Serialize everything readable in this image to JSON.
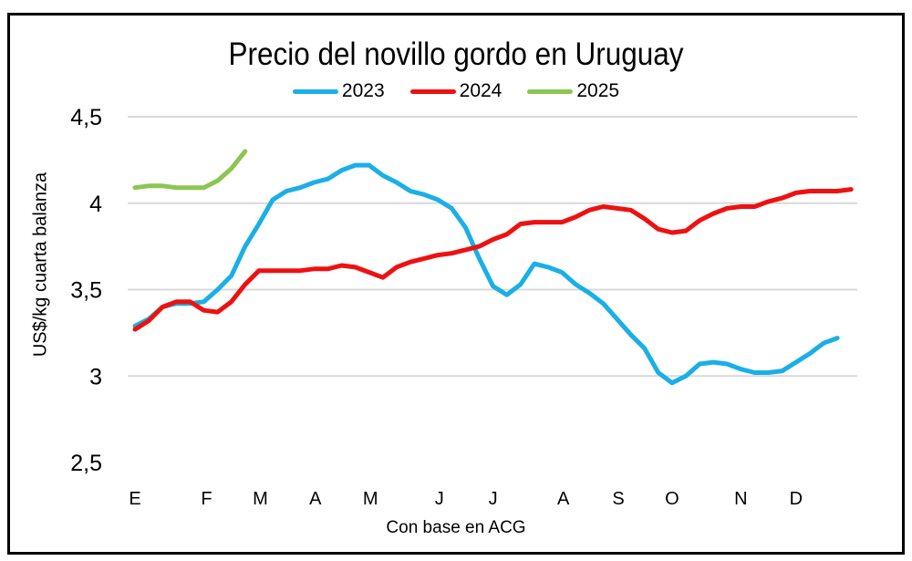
{
  "chart_data": {
    "type": "line",
    "title": "Precio del novillo gordo en Uruguay",
    "ylabel": "US$/kg cuarta balanza",
    "xlabel": "Con base en ACG",
    "ylim": [
      2.5,
      4.5
    ],
    "y_ticks": [
      "2,5",
      "3",
      "3,5",
      "4",
      "4,5"
    ],
    "y_tick_values": [
      2.5,
      3,
      3.5,
      4,
      4.5
    ],
    "x_ticks": [
      {
        "label": "E",
        "week": 0
      },
      {
        "label": "F",
        "week": 5.2
      },
      {
        "label": "M",
        "week": 9.1
      },
      {
        "label": "A",
        "week": 13.1
      },
      {
        "label": "M",
        "week": 17.1
      },
      {
        "label": "J",
        "week": 22.1
      },
      {
        "label": "J",
        "week": 26
      },
      {
        "label": "A",
        "week": 31.1
      },
      {
        "label": "S",
        "week": 35.1
      },
      {
        "label": "O",
        "week": 39
      },
      {
        "label": "N",
        "week": 44
      },
      {
        "label": "D",
        "week": 48
      }
    ],
    "grid": true,
    "legend_position": "top",
    "series": [
      {
        "name": "2023",
        "color": "#1AAFE6",
        "values": [
          3.29,
          3.33,
          3.4,
          3.42,
          3.42,
          3.43,
          3.5,
          3.58,
          3.75,
          3.88,
          4.02,
          4.07,
          4.09,
          4.12,
          4.14,
          4.19,
          4.22,
          4.22,
          4.16,
          4.12,
          4.07,
          4.05,
          4.02,
          3.97,
          3.86,
          3.68,
          3.52,
          3.47,
          3.53,
          3.65,
          3.63,
          3.6,
          3.53,
          3.48,
          3.42,
          3.33,
          3.24,
          3.16,
          3.02,
          2.96,
          3.0,
          3.07,
          3.08,
          3.07,
          3.04,
          3.02,
          3.02,
          3.03,
          3.08,
          3.13,
          3.19,
          3.22
        ]
      },
      {
        "name": "2024",
        "color": "#EE1111",
        "values": [
          3.27,
          3.32,
          3.4,
          3.43,
          3.43,
          3.38,
          3.37,
          3.43,
          3.53,
          3.61,
          3.61,
          3.61,
          3.61,
          3.62,
          3.62,
          3.64,
          3.63,
          3.6,
          3.57,
          3.63,
          3.66,
          3.68,
          3.7,
          3.71,
          3.73,
          3.75,
          3.79,
          3.82,
          3.88,
          3.89,
          3.89,
          3.89,
          3.92,
          3.96,
          3.98,
          3.97,
          3.96,
          3.91,
          3.85,
          3.83,
          3.84,
          3.9,
          3.94,
          3.97,
          3.98,
          3.98,
          4.01,
          4.03,
          4.06,
          4.07,
          4.07,
          4.07,
          4.08
        ]
      },
      {
        "name": "2025",
        "color": "#8CC653",
        "values": [
          4.09,
          4.1,
          4.1,
          4.09,
          4.09,
          4.09,
          4.13,
          4.2,
          4.3
        ]
      }
    ]
  }
}
